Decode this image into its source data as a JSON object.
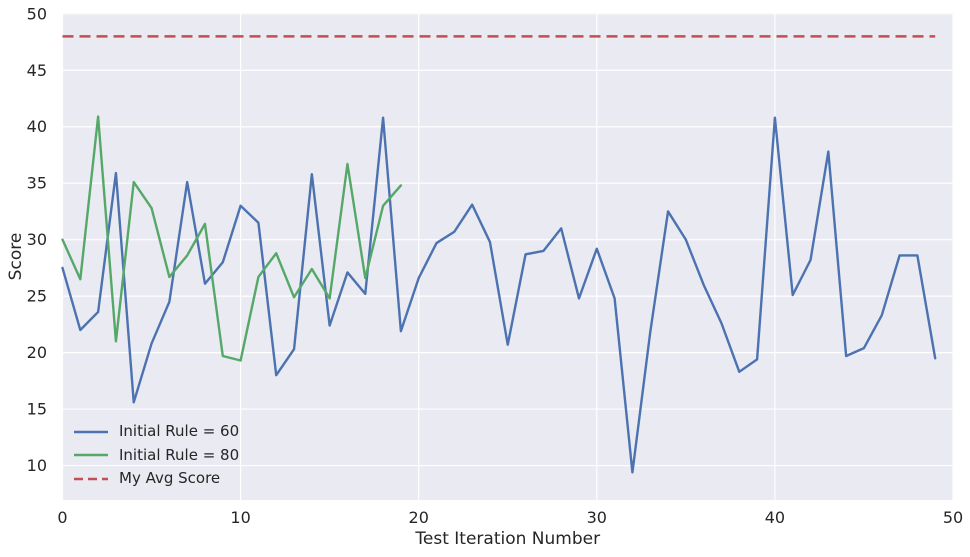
{
  "figure": {
    "background": "#FFFFFF",
    "plot_background": "#EAEAF2",
    "grid_color": "#FFFFFF",
    "text_color": "#262626"
  },
  "chart_data": {
    "type": "line",
    "title": "",
    "xlabel": "Test Iteration Number",
    "ylabel": "Score",
    "xlim": [
      0,
      50
    ],
    "ylim": [
      6.95,
      50.07
    ],
    "x_ticks": [
      0,
      10,
      20,
      30,
      40,
      50
    ],
    "y_ticks": [
      10,
      15,
      20,
      25,
      30,
      35,
      40,
      45,
      50
    ],
    "grid": true,
    "legend_position": "lower-left",
    "series": [
      {
        "name": "Initial Rule = 60",
        "color": "#4C72B0",
        "style": "solid",
        "x": "0..49 step 1",
        "values": [
          27.5,
          22.0,
          23.6,
          35.9,
          15.6,
          20.8,
          24.5,
          35.1,
          26.1,
          28.0,
          33.0,
          31.5,
          18.0,
          20.3,
          35.8,
          22.4,
          27.1,
          25.2,
          40.8,
          21.9,
          26.6,
          29.7,
          30.7,
          33.1,
          29.8,
          20.7,
          28.7,
          29.0,
          31.0,
          24.8,
          29.2,
          24.8,
          9.4,
          21.8,
          32.5,
          30.0,
          26.0,
          22.6,
          18.3,
          19.4,
          40.8,
          25.1,
          28.2,
          37.8,
          19.7,
          20.4,
          23.3,
          28.6,
          28.6,
          19.5
        ]
      },
      {
        "name": "Initial Rule = 80",
        "color": "#55A868",
        "style": "solid",
        "x": "0..19 step 1",
        "values": [
          30.0,
          26.5,
          40.9,
          21.0,
          35.1,
          32.8,
          26.7,
          28.6,
          31.4,
          19.7,
          19.3,
          26.7,
          28.8,
          24.9,
          27.4,
          24.8,
          36.7,
          26.6,
          33.0,
          34.8
        ]
      },
      {
        "name": "My Avg Score",
        "color": "#C44E52",
        "style": "dashed",
        "constant": 48,
        "x_span": [
          0,
          49
        ]
      }
    ]
  }
}
